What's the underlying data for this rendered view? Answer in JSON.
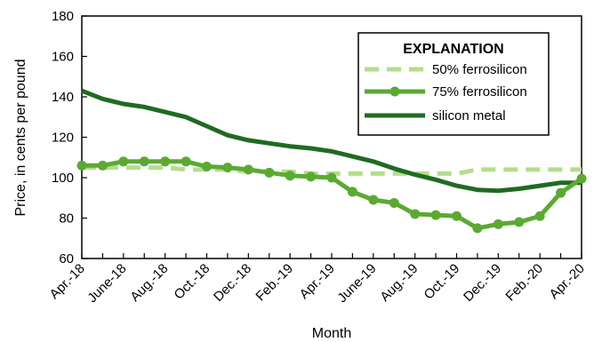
{
  "chart_data": {
    "type": "line",
    "xlabel": "Month",
    "ylabel": "Price, in cents per pound",
    "ylim": [
      60,
      180
    ],
    "yticks": [
      60,
      80,
      100,
      120,
      140,
      160,
      180
    ],
    "x": [
      "Apr.-18",
      "May-18",
      "June-18",
      "July-18",
      "Aug.-18",
      "Sept.-18",
      "Oct.-18",
      "Nov.-18",
      "Dec.-18",
      "Jan.-19",
      "Feb.-19",
      "Mar.-19",
      "Apr.-19",
      "May-19",
      "June-19",
      "July-19",
      "Aug.-19",
      "Sept.-19",
      "Oct.-19",
      "Nov.-19",
      "Dec.-19",
      "Jan.-20",
      "Feb.-20",
      "Mar.-20",
      "Apr.-20"
    ],
    "xtick_labels": [
      "Apr.-18",
      "June-18",
      "Aug.-18",
      "Oct.-18",
      "Dec.-18",
      "Feb.-19",
      "Apr.-19",
      "June-19",
      "Aug.-19",
      "Oct.-19",
      "Dec.-19",
      "Feb.-20",
      "Apr.-20"
    ],
    "grid": false,
    "legend": {
      "title": "EXPLANATION",
      "position": "top-right"
    },
    "series": [
      {
        "name": "50% ferrosilicon",
        "color": "#b5dd8d",
        "style": "dashed",
        "values": [
          105,
          105,
          105,
          105,
          105,
          104,
          104,
          104,
          103,
          103,
          103,
          102,
          102,
          102,
          102,
          102,
          102,
          102,
          102,
          104,
          104,
          104,
          104,
          104,
          104
        ]
      },
      {
        "name": "75% ferrosilicon",
        "color": "#5aaa32",
        "style": "solid-markers",
        "values": [
          106,
          106,
          108,
          108,
          108,
          108,
          105.5,
          105,
          104,
          102.5,
          101,
          100.5,
          100,
          93,
          89,
          87.5,
          82,
          81.5,
          81,
          75,
          77,
          78,
          81,
          92.5,
          99.5
        ]
      },
      {
        "name": "silicon metal",
        "color": "#1f6b22",
        "style": "solid",
        "values": [
          143,
          139,
          136.5,
          135,
          132.5,
          130,
          125.5,
          121,
          118.5,
          117,
          115.5,
          114.5,
          113,
          110.5,
          108,
          104.5,
          101.5,
          99,
          96,
          94,
          93.5,
          94.5,
          96,
          97.5,
          97.5
        ]
      }
    ]
  }
}
